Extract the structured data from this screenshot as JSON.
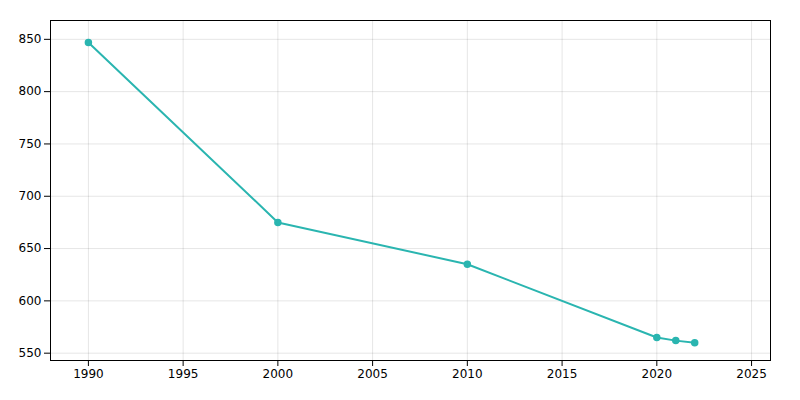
{
  "chart_data": {
    "type": "line",
    "x": [
      1990,
      2000,
      2010,
      2020,
      2021,
      2022
    ],
    "values": [
      847,
      675,
      635,
      565,
      562,
      560
    ],
    "color": "#2ab5b0",
    "marker": "circle",
    "xlim": [
      1988,
      2026
    ],
    "ylim": [
      543,
      868
    ],
    "xticks": [
      1990,
      1995,
      2000,
      2005,
      2010,
      2015,
      2020,
      2025
    ],
    "yticks": [
      550,
      600,
      650,
      700,
      750,
      800,
      850
    ],
    "grid": true
  }
}
